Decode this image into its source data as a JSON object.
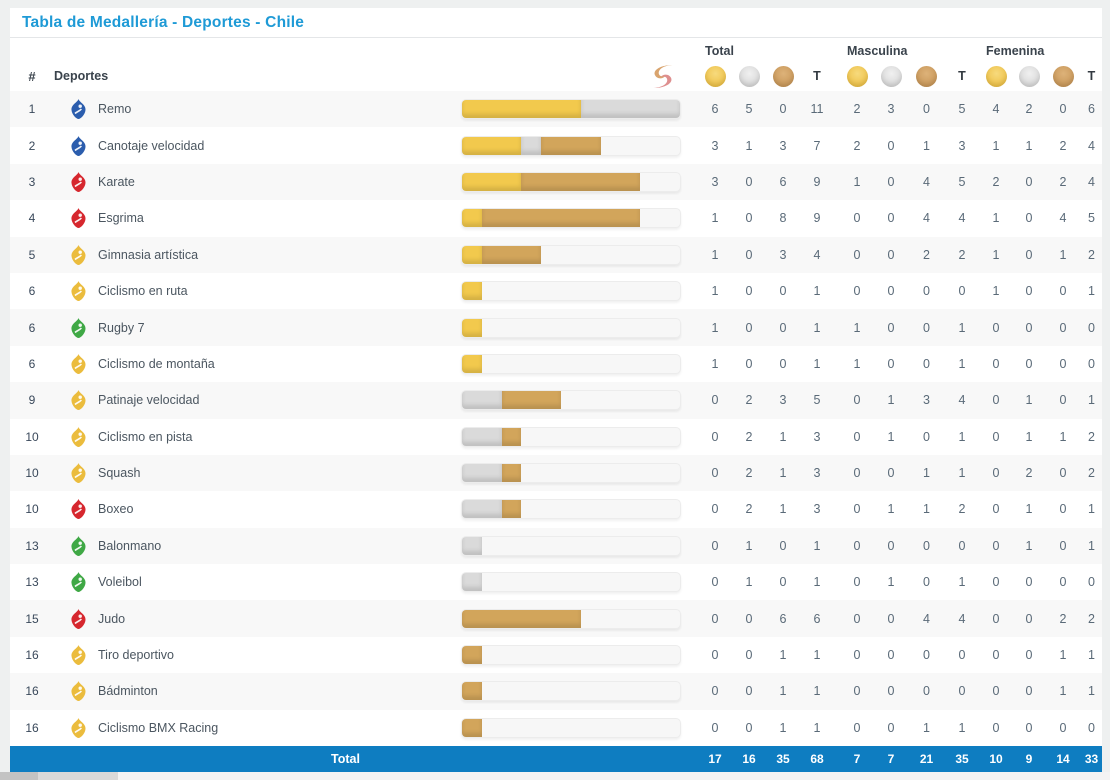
{
  "title": "Tabla de Medallería - Deportes - Chile",
  "colors": {
    "accent_blue": "#1E9AD6",
    "footer_blue": "#0E7DC1",
    "bar_gold": "#F2C94D",
    "bar_silver": "#DADADA",
    "bar_bronze": "#D2A55B",
    "icon_blue": "#2B5DAD",
    "icon_red": "#D6272E",
    "icon_yellow": "#EBBC3D",
    "icon_green": "#3FA845"
  },
  "header": {
    "rank": "#",
    "sport": "Deportes",
    "t_label": "T",
    "groups": [
      {
        "label": "Total"
      },
      {
        "label": "Masculina"
      },
      {
        "label": "Femenina"
      }
    ],
    "logo": "santiago-2023-flame-logo"
  },
  "bar_max_total": 11,
  "rows": [
    {
      "rank": "1",
      "sport": "Remo",
      "icon_color": "#2B5DAD",
      "total": [
        6,
        5,
        0,
        11
      ],
      "masculina": [
        2,
        3,
        0,
        5
      ],
      "femenina": [
        4,
        2,
        0,
        6
      ]
    },
    {
      "rank": "2",
      "sport": "Canotaje velocidad",
      "icon_color": "#2B5DAD",
      "total": [
        3,
        1,
        3,
        7
      ],
      "masculina": [
        2,
        0,
        1,
        3
      ],
      "femenina": [
        1,
        1,
        2,
        4
      ]
    },
    {
      "rank": "3",
      "sport": "Karate",
      "icon_color": "#D6272E",
      "total": [
        3,
        0,
        6,
        9
      ],
      "masculina": [
        1,
        0,
        4,
        5
      ],
      "femenina": [
        2,
        0,
        2,
        4
      ]
    },
    {
      "rank": "4",
      "sport": "Esgrima",
      "icon_color": "#D6272E",
      "total": [
        1,
        0,
        8,
        9
      ],
      "masculina": [
        0,
        0,
        4,
        4
      ],
      "femenina": [
        1,
        0,
        4,
        5
      ]
    },
    {
      "rank": "5",
      "sport": "Gimnasia artística",
      "icon_color": "#EBBC3D",
      "total": [
        1,
        0,
        3,
        4
      ],
      "masculina": [
        0,
        0,
        2,
        2
      ],
      "femenina": [
        1,
        0,
        1,
        2
      ]
    },
    {
      "rank": "6",
      "sport": "Ciclismo en ruta",
      "icon_color": "#EBBC3D",
      "total": [
        1,
        0,
        0,
        1
      ],
      "masculina": [
        0,
        0,
        0,
        0
      ],
      "femenina": [
        1,
        0,
        0,
        1
      ]
    },
    {
      "rank": "6",
      "sport": "Rugby 7",
      "icon_color": "#3FA845",
      "total": [
        1,
        0,
        0,
        1
      ],
      "masculina": [
        1,
        0,
        0,
        1
      ],
      "femenina": [
        0,
        0,
        0,
        0
      ]
    },
    {
      "rank": "6",
      "sport": "Ciclismo de montaña",
      "icon_color": "#EBBC3D",
      "total": [
        1,
        0,
        0,
        1
      ],
      "masculina": [
        1,
        0,
        0,
        1
      ],
      "femenina": [
        0,
        0,
        0,
        0
      ]
    },
    {
      "rank": "9",
      "sport": "Patinaje velocidad",
      "icon_color": "#EBBC3D",
      "total": [
        0,
        2,
        3,
        5
      ],
      "masculina": [
        0,
        1,
        3,
        4
      ],
      "femenina": [
        0,
        1,
        0,
        1
      ]
    },
    {
      "rank": "10",
      "sport": "Ciclismo en pista",
      "icon_color": "#EBBC3D",
      "total": [
        0,
        2,
        1,
        3
      ],
      "masculina": [
        0,
        1,
        0,
        1
      ],
      "femenina": [
        0,
        1,
        1,
        2
      ]
    },
    {
      "rank": "10",
      "sport": "Squash",
      "icon_color": "#EBBC3D",
      "total": [
        0,
        2,
        1,
        3
      ],
      "masculina": [
        0,
        0,
        1,
        1
      ],
      "femenina": [
        0,
        2,
        0,
        2
      ]
    },
    {
      "rank": "10",
      "sport": "Boxeo",
      "icon_color": "#D6272E",
      "total": [
        0,
        2,
        1,
        3
      ],
      "masculina": [
        0,
        1,
        1,
        2
      ],
      "femenina": [
        0,
        1,
        0,
        1
      ]
    },
    {
      "rank": "13",
      "sport": "Balonmano",
      "icon_color": "#3FA845",
      "total": [
        0,
        1,
        0,
        1
      ],
      "masculina": [
        0,
        0,
        0,
        0
      ],
      "femenina": [
        0,
        1,
        0,
        1
      ]
    },
    {
      "rank": "13",
      "sport": "Voleibol",
      "icon_color": "#3FA845",
      "total": [
        0,
        1,
        0,
        1
      ],
      "masculina": [
        0,
        1,
        0,
        1
      ],
      "femenina": [
        0,
        0,
        0,
        0
      ]
    },
    {
      "rank": "15",
      "sport": "Judo",
      "icon_color": "#D6272E",
      "total": [
        0,
        0,
        6,
        6
      ],
      "masculina": [
        0,
        0,
        4,
        4
      ],
      "femenina": [
        0,
        0,
        2,
        2
      ]
    },
    {
      "rank": "16",
      "sport": "Tiro deportivo",
      "icon_color": "#EBBC3D",
      "total": [
        0,
        0,
        1,
        1
      ],
      "masculina": [
        0,
        0,
        0,
        0
      ],
      "femenina": [
        0,
        0,
        1,
        1
      ]
    },
    {
      "rank": "16",
      "sport": "Bádminton",
      "icon_color": "#EBBC3D",
      "total": [
        0,
        0,
        1,
        1
      ],
      "masculina": [
        0,
        0,
        0,
        0
      ],
      "femenina": [
        0,
        0,
        1,
        1
      ]
    },
    {
      "rank": "16",
      "sport": "Ciclismo BMX Racing",
      "icon_color": "#EBBC3D",
      "total": [
        0,
        0,
        1,
        1
      ],
      "masculina": [
        0,
        0,
        1,
        1
      ],
      "femenina": [
        0,
        0,
        0,
        0
      ]
    }
  ],
  "footer": {
    "label": "Total",
    "total": [
      17,
      16,
      35,
      68
    ],
    "masculina": [
      7,
      7,
      21,
      35
    ],
    "femenina": [
      10,
      9,
      14,
      33
    ]
  }
}
